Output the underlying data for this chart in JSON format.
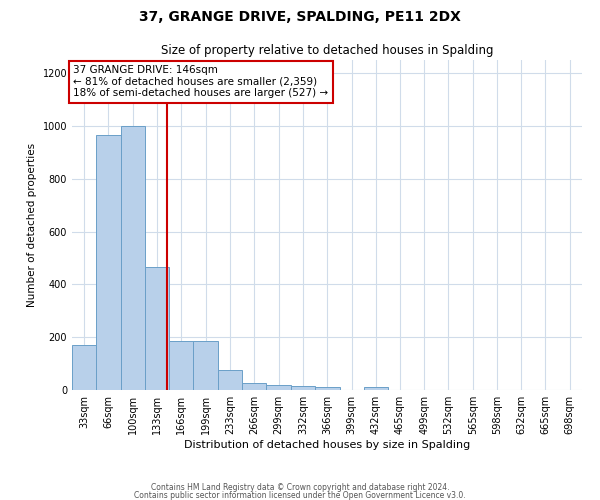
{
  "title": "37, GRANGE DRIVE, SPALDING, PE11 2DX",
  "subtitle": "Size of property relative to detached houses in Spalding",
  "xlabel": "Distribution of detached houses by size in Spalding",
  "ylabel": "Number of detached properties",
  "bar_labels": [
    "33sqm",
    "66sqm",
    "100sqm",
    "133sqm",
    "166sqm",
    "199sqm",
    "233sqm",
    "266sqm",
    "299sqm",
    "332sqm",
    "366sqm",
    "399sqm",
    "432sqm",
    "465sqm",
    "499sqm",
    "532sqm",
    "565sqm",
    "598sqm",
    "632sqm",
    "665sqm",
    "698sqm"
  ],
  "bar_values": [
    170,
    965,
    1000,
    465,
    185,
    185,
    75,
    25,
    20,
    15,
    10,
    0,
    10,
    0,
    0,
    0,
    0,
    0,
    0,
    0,
    0
  ],
  "bar_color": "#b8d0ea",
  "bar_edgecolor": "#6a9fc8",
  "bin_edges": [
    16.5,
    49.5,
    83.0,
    116.5,
    149.5,
    182.5,
    216.0,
    249.5,
    282.5,
    315.5,
    349.0,
    382.5,
    415.5,
    448.5,
    481.5,
    514.5,
    548.0,
    581.0,
    614.0,
    647.5,
    680.5,
    714.0
  ],
  "vline_x": 146,
  "vline_color": "#cc0000",
  "ylim": [
    0,
    1250
  ],
  "yticks": [
    0,
    200,
    400,
    600,
    800,
    1000,
    1200
  ],
  "annotation_title": "37 GRANGE DRIVE: 146sqm",
  "annotation_line1": "← 81% of detached houses are smaller (2,359)",
  "annotation_line2": "18% of semi-detached houses are larger (527) →",
  "annotation_box_color": "#ffffff",
  "annotation_box_edgecolor": "#cc0000",
  "footnote1": "Contains HM Land Registry data © Crown copyright and database right 2024.",
  "footnote2": "Contains public sector information licensed under the Open Government Licence v3.0.",
  "background_color": "#ffffff",
  "grid_color": "#d0dcea"
}
